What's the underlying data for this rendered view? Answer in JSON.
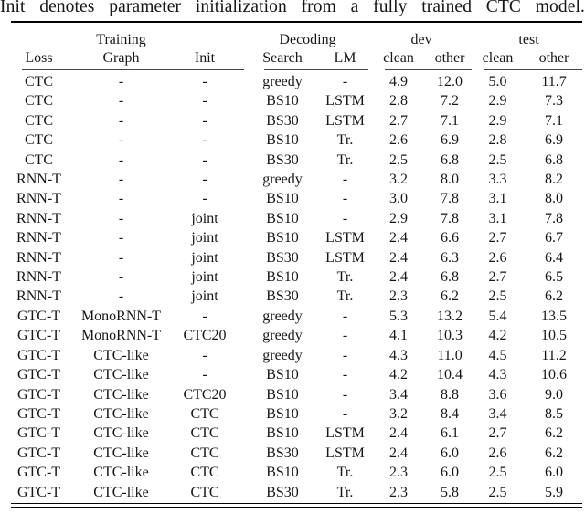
{
  "caption": "Init denotes parameter initialization from a fully trained CTC model.",
  "table": {
    "group_headers": [
      {
        "label": "",
        "span": 1
      },
      {
        "label": "Training",
        "span": 1
      },
      {
        "label": "",
        "span": 1
      },
      {
        "label": "Decoding",
        "span": 2
      },
      {
        "label": "dev",
        "span": 2
      },
      {
        "label": "test",
        "span": 2
      }
    ],
    "column_headers": [
      "Loss",
      "Graph",
      "Init",
      "Search",
      "LM",
      "clean",
      "other",
      "clean",
      "other"
    ],
    "rows": [
      [
        "CTC",
        "-",
        "-",
        "greedy",
        "-",
        "4.9",
        "12.0",
        "5.0",
        "11.7"
      ],
      [
        "CTC",
        "-",
        "-",
        "BS10",
        "LSTM",
        "2.8",
        "7.2",
        "2.9",
        "7.3"
      ],
      [
        "CTC",
        "-",
        "-",
        "BS30",
        "LSTM",
        "2.7",
        "7.1",
        "2.9",
        "7.1"
      ],
      [
        "CTC",
        "-",
        "-",
        "BS10",
        "Tr.",
        "2.6",
        "6.9",
        "2.8",
        "6.9"
      ],
      [
        "CTC",
        "-",
        "-",
        "BS30",
        "Tr.",
        "2.5",
        "6.8",
        "2.5",
        "6.8"
      ],
      [
        "RNN-T",
        "-",
        "-",
        "greedy",
        "-",
        "3.2",
        "8.0",
        "3.3",
        "8.2"
      ],
      [
        "RNN-T",
        "-",
        "-",
        "BS10",
        "-",
        "3.0",
        "7.8",
        "3.1",
        "8.0"
      ],
      [
        "RNN-T",
        "-",
        "joint",
        "BS10",
        "-",
        "2.9",
        "7.8",
        "3.1",
        "7.8"
      ],
      [
        "RNN-T",
        "-",
        "joint",
        "BS10",
        "LSTM",
        "2.4",
        "6.6",
        "2.7",
        "6.7"
      ],
      [
        "RNN-T",
        "-",
        "joint",
        "BS30",
        "LSTM",
        "2.4",
        "6.3",
        "2.6",
        "6.4"
      ],
      [
        "RNN-T",
        "-",
        "joint",
        "BS10",
        "Tr.",
        "2.4",
        "6.8",
        "2.7",
        "6.5"
      ],
      [
        "RNN-T",
        "-",
        "joint",
        "BS30",
        "Tr.",
        "2.3",
        "6.2",
        "2.5",
        "6.2"
      ],
      [
        "GTC-T",
        "MonoRNN-T",
        "-",
        "greedy",
        "-",
        "5.3",
        "13.2",
        "5.4",
        "13.5"
      ],
      [
        "GTC-T",
        "MonoRNN-T",
        "CTC20",
        "greedy",
        "-",
        "4.1",
        "10.3",
        "4.2",
        "10.5"
      ],
      [
        "GTC-T",
        "CTC-like",
        "-",
        "greedy",
        "-",
        "4.3",
        "11.0",
        "4.5",
        "11.2"
      ],
      [
        "GTC-T",
        "CTC-like",
        "-",
        "BS10",
        "-",
        "4.2",
        "10.4",
        "4.3",
        "10.6"
      ],
      [
        "GTC-T",
        "CTC-like",
        "CTC20",
        "BS10",
        "-",
        "3.4",
        "8.8",
        "3.6",
        "9.0"
      ],
      [
        "GTC-T",
        "CTC-like",
        "CTC",
        "BS10",
        "-",
        "3.2",
        "8.4",
        "3.4",
        "8.5"
      ],
      [
        "GTC-T",
        "CTC-like",
        "CTC",
        "BS10",
        "LSTM",
        "2.4",
        "6.1",
        "2.7",
        "6.2"
      ],
      [
        "GTC-T",
        "CTC-like",
        "CTC",
        "BS30",
        "LSTM",
        "2.4",
        "6.0",
        "2.6",
        "6.2"
      ],
      [
        "GTC-T",
        "CTC-like",
        "CTC",
        "BS10",
        "Tr.",
        "2.3",
        "6.0",
        "2.5",
        "6.0"
      ],
      [
        "GTC-T",
        "CTC-like",
        "CTC",
        "BS30",
        "Tr.",
        "2.3",
        "5.8",
        "2.5",
        "5.9"
      ]
    ]
  }
}
